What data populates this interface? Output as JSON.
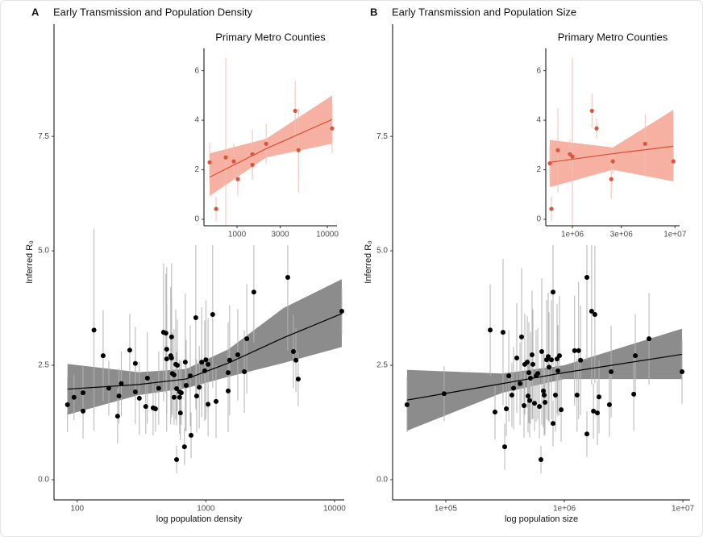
{
  "chart_data": [
    {
      "type": "scatter",
      "panel_label": "A",
      "title": "Early Transmission and Population Density",
      "x_label": "log population density",
      "y_label": "Inferred R₀",
      "xlog": true,
      "xlim": [
        66,
        11900
      ],
      "ylim": [
        -0.44,
        9.95
      ],
      "xticks": [
        100,
        1000,
        10000
      ],
      "yticks": [
        {
          "value": 0,
          "label": "0.0"
        },
        2.5,
        {
          "value": 5,
          "label": "5.0"
        },
        7.5
      ],
      "point_color": "#000000",
      "error_color": "#b3b3b3",
      "line_color": "#000000",
      "band_color": "#8c8c8c",
      "x": [
        84,
        94.4,
        111,
        111,
        135,
        159,
        176,
        206,
        211,
        220,
        256,
        283,
        283,
        304,
        341,
        351,
        389,
        406,
        430,
        469,
        489,
        496,
        496,
        533,
        541,
        541,
        549,
        566,
        566,
        583,
        592,
        592,
        600,
        625,
        625,
        634,
        644,
        682,
        692,
        703,
        756,
        767,
        835,
        848,
        888,
        928,
        979,
        1000,
        1040,
        1040,
        1130,
        1200,
        1490,
        1490,
        1530,
        1770,
        1990,
        2080,
        2360,
        4330,
        4790,
        5010,
        5220,
        11390
      ],
      "values": [
        1.64,
        1.8,
        1.9,
        1.5,
        3.27,
        2.71,
        2.0,
        1.39,
        1.83,
        2.1,
        2.83,
        2.54,
        1.92,
        1.78,
        1.6,
        2.22,
        1.57,
        1.55,
        2.0,
        3.22,
        3.2,
        2.85,
        2.64,
        2.71,
        3.12,
        2.66,
        2.32,
        2.29,
        1.8,
        2.52,
        1.99,
        0.44,
        2.5,
        1.8,
        1.92,
        1.46,
        1.9,
        0.72,
        2.57,
        2.06,
        2.27,
        0.97,
        3.54,
        1.83,
        2.02,
        2.57,
        2.38,
        2.62,
        1.65,
        2.52,
        3.61,
        1.71,
        2.34,
        1.94,
        2.61,
        2.73,
        2.36,
        3.08,
        4.1,
        4.42,
        2.8,
        2.61,
        2.2,
        3.68
      ],
      "errors": [
        0.6,
        0.5,
        0.6,
        0.6,
        2.2,
        1.0,
        0.6,
        0.6,
        0.6,
        0.7,
        0.8,
        0.8,
        0.7,
        0.8,
        0.6,
        1.0,
        0.6,
        0.5,
        0.8,
        1.5,
        1.3,
        1.8,
        1.2,
        1.5,
        1.6,
        1.3,
        0.9,
        1.0,
        0.6,
        1.2,
        0.8,
        0.3,
        1.0,
        0.8,
        0.7,
        0.6,
        0.7,
        0.4,
        1.5,
        1.0,
        1.1,
        0.5,
        2.0,
        0.8,
        0.9,
        1.2,
        1.1,
        1.3,
        0.7,
        1.0,
        1.6,
        0.8,
        1.1,
        0.9,
        1.2,
        1.0,
        0.9,
        1.2,
        1.1,
        1.6,
        0.8,
        0.7,
        0.6,
        0.5
      ],
      "fit": {
        "x": [
          84,
          300,
          700,
          1500,
          4000,
          11390
        ],
        "values": [
          1.98,
          2.08,
          2.2,
          2.55,
          3.1,
          3.63
        ],
        "lower": [
          1.42,
          1.85,
          2.0,
          2.25,
          2.55,
          2.9
        ],
        "upper": [
          2.53,
          2.35,
          2.42,
          2.85,
          3.75,
          4.38
        ]
      }
    },
    {
      "type": "scatter",
      "title": "Primary Metro Counties",
      "xlog": true,
      "xlim": [
        430,
        12800
      ],
      "ylim": [
        -0.26,
        6.9
      ],
      "xticks": [
        1000,
        3000,
        10000
      ],
      "yticks": [
        0,
        2,
        4,
        6
      ],
      "point_color": "#d9553e",
      "error_color": "#f2c0b2",
      "line_color": "#d94f30",
      "band_color": "#f4a393",
      "x": [
        497,
        586,
        750,
        920,
        1020,
        1480,
        1480,
        2100,
        4410,
        4790,
        11300
      ],
      "values": [
        2.3,
        0.42,
        2.5,
        2.34,
        1.62,
        2.63,
        2.2,
        3.05,
        4.38,
        2.79,
        3.67
      ],
      "errors": [
        0.8,
        0.5,
        4.0,
        0.7,
        0.7,
        1.0,
        0.6,
        0.8,
        1.2,
        1.7,
        1.0
      ],
      "fit": {
        "x": [
          497,
          2100,
          11300
        ],
        "values": [
          1.7,
          2.85,
          4.03
        ],
        "lower": [
          0.94,
          2.5,
          3.05
        ],
        "upper": [
          2.66,
          3.25,
          5.0
        ]
      }
    },
    {
      "type": "scatter",
      "panel_label": "B",
      "title": "Early Transmission and Population Size",
      "x_label": "log population size",
      "y_label": "Inferred R₀",
      "xlog": true,
      "xlim": [
        35600,
        11500000
      ],
      "ylim": [
        -0.44,
        9.95
      ],
      "xticks": [
        {
          "value": 100000,
          "label": "1e+05"
        },
        {
          "value": 1000000,
          "label": "1e+06"
        },
        {
          "value": 10000000,
          "label": "1e+07"
        }
      ],
      "yticks": [
        {
          "value": 0,
          "label": "0.0"
        },
        2.5,
        {
          "value": 5,
          "label": "5.0"
        },
        7.5
      ],
      "point_color": "#000000",
      "error_color": "#b3b3b3",
      "line_color": "#000000",
      "band_color": "#8c8c8c",
      "x": [
        47100,
        96900,
        237000,
        260000,
        304000,
        314000,
        324000,
        340000,
        361000,
        373000,
        397000,
        423000,
        436000,
        457000,
        464000,
        487000,
        494000,
        502000,
        510000,
        518000,
        534000,
        543000,
        560000,
        578000,
        597000,
        616000,
        635000,
        645000,
        666000,
        676000,
        687000,
        709000,
        731000,
        743000,
        778000,
        803000,
        803000,
        841000,
        868000,
        882000,
        910000,
        940000,
        1220000,
        1280000,
        1320000,
        1370000,
        1550000,
        1550000,
        1700000,
        1760000,
        1810000,
        1900000,
        1960000,
        2400000,
        2480000,
        3850000,
        3970000,
        5180000,
        9840000
      ],
      "values": [
        1.64,
        1.88,
        3.27,
        1.48,
        3.22,
        0.72,
        1.55,
        2.27,
        1.85,
        2.0,
        2.66,
        2.1,
        3.12,
        1.62,
        2.52,
        2.57,
        1.83,
        2.34,
        1.73,
        2.22,
        2.73,
        2.52,
        1.67,
        2.27,
        2.32,
        1.6,
        0.44,
        2.8,
        1.94,
        1.85,
        1.69,
        2.62,
        2.69,
        2.46,
        2.62,
        4.1,
        1.23,
        1.85,
        2.64,
        2.38,
        2.71,
        1.53,
        2.82,
        1.85,
        2.82,
        2.61,
        4.42,
        1.0,
        3.68,
        1.5,
        3.61,
        1.46,
        1.81,
        1.64,
        2.36,
        1.87,
        2.71,
        3.08,
        2.36
      ],
      "errors": [
        0.6,
        0.6,
        1.0,
        0.6,
        1.6,
        0.5,
        0.6,
        1.0,
        0.7,
        0.9,
        1.2,
        0.9,
        1.5,
        0.7,
        1.1,
        1.0,
        0.8,
        1.1,
        0.8,
        1.0,
        1.4,
        1.2,
        0.6,
        1.0,
        1.0,
        0.7,
        0.3,
        1.6,
        0.8,
        0.9,
        0.7,
        1.3,
        1.4,
        1.2,
        1.3,
        1.6,
        0.5,
        0.8,
        1.2,
        1.0,
        1.3,
        0.7,
        1.2,
        0.8,
        1.5,
        1.2,
        1.8,
        0.5,
        1.6,
        0.6,
        1.5,
        0.7,
        0.8,
        0.7,
        1.0,
        0.8,
        0.9,
        1.0,
        0.7
      ],
      "fit": {
        "x": [
          47100,
          300000,
          1000000,
          9840000
        ],
        "values": [
          1.74,
          2.1,
          2.34,
          2.74
        ],
        "lower": [
          1.07,
          1.9,
          2.2,
          2.2
        ],
        "upper": [
          2.4,
          2.32,
          2.5,
          3.3
        ]
      }
    },
    {
      "type": "scatter",
      "title": "Primary Metro Counties",
      "xlog": true,
      "xlim": [
        550000,
        11100000
      ],
      "ylim": [
        -0.26,
        6.9
      ],
      "xticks": [
        {
          "value": 1000000,
          "label": "1e+06"
        },
        {
          "value": 3000000,
          "label": "3e+06"
        },
        {
          "value": 10000000,
          "label": "1e+07"
        }
      ],
      "yticks": [
        0,
        2,
        4,
        6
      ],
      "point_color": "#d9553e",
      "error_color": "#f2c0b2",
      "line_color": "#d94f30",
      "band_color": "#f4a393",
      "x": [
        603000,
        624000,
        721000,
        946000,
        1000000,
        1550000,
        1720000,
        2390000,
        2480000,
        5120000,
        9640000
      ],
      "values": [
        2.26,
        0.42,
        2.79,
        2.63,
        2.53,
        4.38,
        3.67,
        1.62,
        2.34,
        3.05,
        2.34
      ],
      "errors": [
        0.7,
        0.5,
        1.7,
        0.6,
        4.0,
        0.7,
        0.4,
        0.8,
        0.5,
        1.2,
        0.6
      ],
      "fit": {
        "x": [
          603000,
          2480000,
          9640000
        ],
        "values": [
          2.3,
          2.65,
          2.95
        ],
        "lower": [
          1.3,
          2.0,
          1.53
        ],
        "upper": [
          3.2,
          2.9,
          4.42
        ]
      }
    }
  ]
}
